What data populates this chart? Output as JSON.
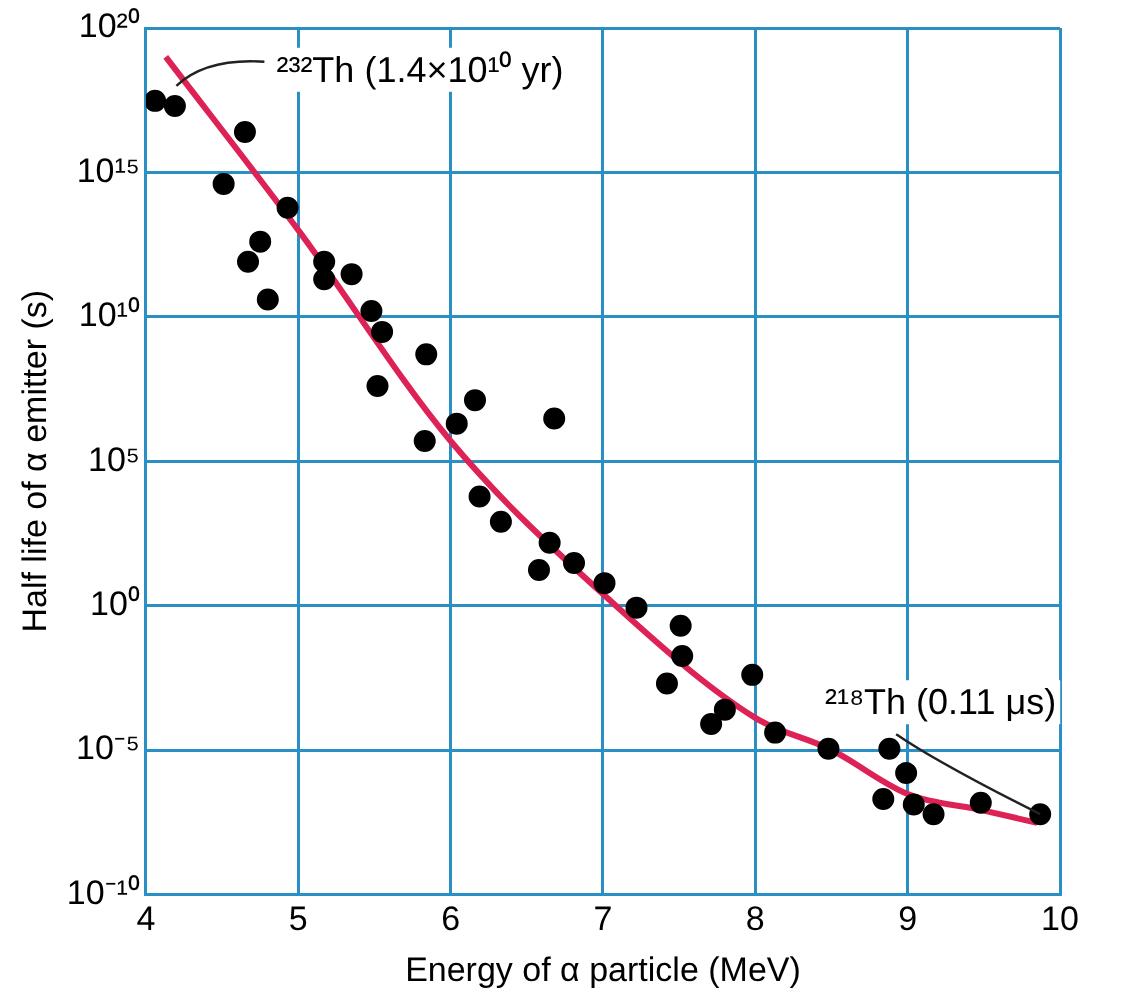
{
  "chart_data": {
    "type": "scatter",
    "xlabel": "Energy of α particle (MeV)",
    "ylabel": "Half life of α emitter (s)",
    "xlim": [
      4,
      10
    ],
    "xticks": [
      4,
      5,
      6,
      7,
      8,
      9,
      10
    ],
    "ylim": [
      1e-10,
      1e+20
    ],
    "yticks": [
      {
        "value": 1e-10,
        "label": "10⁻¹⁰"
      },
      {
        "value": 1e-05,
        "label": "10⁻⁵"
      },
      {
        "value": 1,
        "label": "10⁰"
      },
      {
        "value": 100000.0,
        "label": "10⁵"
      },
      {
        "value": 10000000000.0,
        "label": "10¹⁰"
      },
      {
        "value": 1000000000000000.0,
        "label": "10¹⁵"
      },
      {
        "value": 1e+20,
        "label": "10²⁰"
      }
    ],
    "log": "y",
    "grid": true,
    "legend": false,
    "marker": "circle",
    "series": [
      {
        "color": "#000000",
        "x": [
          4.06,
          4.19,
          4.65,
          4.51,
          4.93,
          4.75,
          4.67,
          4.8,
          5.17,
          5.17,
          5.35,
          5.48,
          5.55,
          5.84,
          5.52,
          6.16,
          6.04,
          5.83,
          6.68,
          6.19,
          6.33,
          6.65,
          6.58,
          6.81,
          7.01,
          7.22,
          7.51,
          7.52,
          7.42,
          7.98,
          7.8,
          7.71,
          8.13,
          8.48,
          8.88,
          8.99,
          8.84,
          9.04,
          9.17,
          9.48,
          9.87
        ],
        "values": [
          3e+17,
          2e+17,
          2.5e+16,
          400000000000000.0,
          60000000000000.0,
          4000000000000.0,
          800000000000.0,
          40000000000.0,
          800000000000.0,
          200000000000.0,
          300000000000.0,
          16000000000.0,
          3000000000.0,
          500000000.0,
          40000000.0,
          13000000.0,
          2000000.0,
          500000.0,
          3000000.0,
          6000.0,
          800,
          150,
          17,
          30,
          6,
          0.85,
          0.2,
          0.018,
          0.002,
          0.004,
          0.00025,
          8e-05,
          4e-05,
          1.1e-05,
          1.1e-05,
          1.6e-06,
          2e-07,
          1.3e-07,
          6e-08,
          1.5e-07,
          6e-08
        ]
      },
      {
        "type": "line",
        "color": "#dd2255",
        "line_style": "solid",
        "marker": "none",
        "x": [
          4.13,
          5,
          6,
          7,
          8,
          8.5,
          9,
          9.5,
          9.85
        ],
        "values": [
          1e+19,
          10000000000000.0,
          500000.0,
          2.5,
          0.00013,
          1e-05,
          3e-07,
          8e-08,
          3e-08
        ]
      }
    ],
    "annotations": [
      {
        "text": "²³²Th (1.4×10¹⁰ yr)",
        "x": 4.2,
        "y": 1e+18
      },
      {
        "text": "²¹⁸Th (0.11 μs)",
        "x": 9.87,
        "y": 6e-08
      }
    ]
  }
}
